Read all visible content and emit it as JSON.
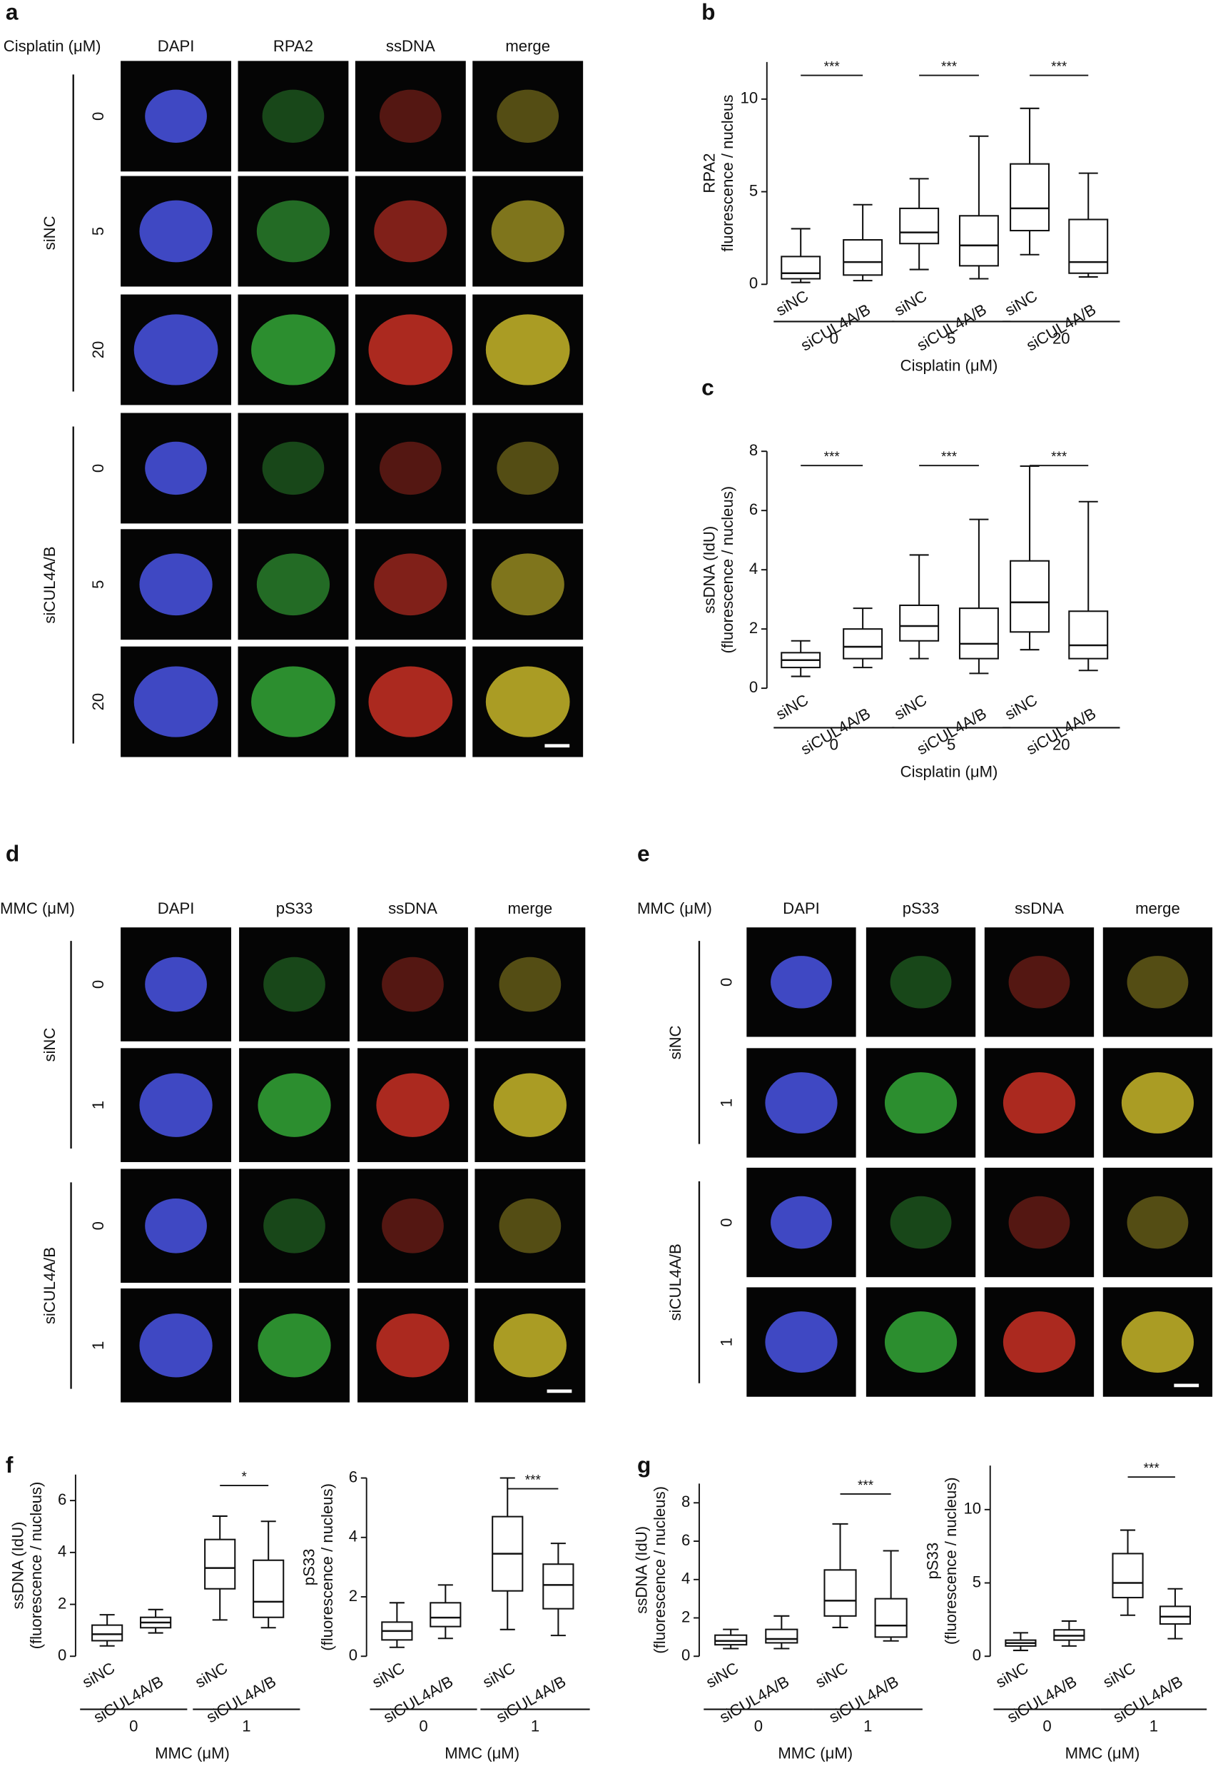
{
  "figure": {
    "letters": [
      "a",
      "b",
      "c",
      "d",
      "e",
      "f",
      "g"
    ],
    "panels": {
      "a": {
        "treatment": "Cisplatin (μM)",
        "channels": [
          "DAPI",
          "RPA2",
          "ssDNA",
          "merge"
        ],
        "groups": [
          {
            "label": "siNC",
            "doses": [
              "0",
              "5",
              "20"
            ]
          },
          {
            "label": "siCUL4A/B",
            "doses": [
              "0",
              "5",
              "20"
            ]
          }
        ]
      },
      "d": {
        "treatment": "MMC (μM)",
        "channels": [
          "DAPI",
          "pS33",
          "ssDNA",
          "merge"
        ],
        "groups": [
          {
            "label": "siNC",
            "doses": [
              "0",
              "1"
            ]
          },
          {
            "label": "siCUL4A/B",
            "doses": [
              "0",
              "1"
            ]
          }
        ]
      },
      "e": {
        "treatment": "MMC (μM)",
        "channels": [
          "DAPI",
          "pS33",
          "ssDNA",
          "merge"
        ],
        "groups": [
          {
            "label": "siNC",
            "doses": [
              "0",
              "1"
            ]
          },
          {
            "label": "siCUL4A/B",
            "doses": [
              "0",
              "1"
            ]
          }
        ]
      }
    }
  },
  "chart_data": [
    {
      "type": "box",
      "ylabel": [
        "RPA2",
        "fluorescence / nucleus"
      ],
      "xlabel": "Cisplatin (μM)",
      "categories": [
        "siNC",
        "siCUL4A/B",
        "siNC",
        "siCUL4A/B",
        "siNC",
        "siCUL4A/B"
      ],
      "groups": [
        "0",
        "5",
        "20"
      ],
      "significance": [
        "***",
        "***",
        "***"
      ],
      "ylim": [
        0,
        12
      ],
      "yticks": [
        0,
        5,
        10
      ],
      "boxes": [
        {
          "whislo": 0.1,
          "q1": 0.3,
          "med": 0.6,
          "q3": 1.5,
          "whishi": 3.0
        },
        {
          "whislo": 0.2,
          "q1": 0.5,
          "med": 1.2,
          "q3": 2.4,
          "whishi": 4.3
        },
        {
          "whislo": 0.8,
          "q1": 2.2,
          "med": 2.8,
          "q3": 4.1,
          "whishi": 5.7
        },
        {
          "whislo": 0.3,
          "q1": 1.0,
          "med": 2.1,
          "q3": 3.7,
          "whishi": 8.0
        },
        {
          "whislo": 1.6,
          "q1": 2.9,
          "med": 4.1,
          "q3": 6.5,
          "whishi": 9.5
        },
        {
          "whislo": 0.4,
          "q1": 0.6,
          "med": 1.2,
          "q3": 3.5,
          "whishi": 6.0
        }
      ]
    },
    {
      "type": "box",
      "ylabel": [
        "ssDNA (IdU)",
        "(fluorescence / nucleus)"
      ],
      "xlabel": "Cisplatin (μM)",
      "categories": [
        "siNC",
        "siCUL4A/B",
        "siNC",
        "siCUL4A/B",
        "siNC",
        "siCUL4A/B"
      ],
      "groups": [
        "0",
        "5",
        "20"
      ],
      "significance": [
        "***",
        "***",
        "***"
      ],
      "ylim": [
        0,
        8
      ],
      "yticks": [
        0,
        2,
        4,
        6,
        8
      ],
      "boxes": [
        {
          "whislo": 0.4,
          "q1": 0.7,
          "med": 0.95,
          "q3": 1.2,
          "whishi": 1.6
        },
        {
          "whislo": 0.7,
          "q1": 1.0,
          "med": 1.4,
          "q3": 2.0,
          "whishi": 2.7
        },
        {
          "whislo": 1.0,
          "q1": 1.6,
          "med": 2.1,
          "q3": 2.8,
          "whishi": 4.5
        },
        {
          "whislo": 0.5,
          "q1": 1.0,
          "med": 1.5,
          "q3": 2.7,
          "whishi": 5.7
        },
        {
          "whislo": 1.3,
          "q1": 1.9,
          "med": 2.9,
          "q3": 4.3,
          "whishi": 7.5
        },
        {
          "whislo": 0.6,
          "q1": 1.0,
          "med": 1.45,
          "q3": 2.6,
          "whishi": 6.3
        }
      ]
    },
    {
      "type": "box",
      "ylabel": [
        "ssDNA (IdU)",
        "(fluorescence / nucleus)"
      ],
      "xlabel": "MMC (μM)",
      "categories": [
        "siNC",
        "siCUL4A/B",
        "siNC",
        "siCUL4A/B"
      ],
      "groups": [
        "0",
        "1"
      ],
      "significance": [
        null,
        "*"
      ],
      "ylim": [
        0,
        7
      ],
      "yticks": [
        0,
        2,
        4,
        6
      ],
      "boxes": [
        {
          "whislo": 0.4,
          "q1": 0.6,
          "med": 0.85,
          "q3": 1.2,
          "whishi": 1.6
        },
        {
          "whislo": 0.9,
          "q1": 1.1,
          "med": 1.3,
          "q3": 1.5,
          "whishi": 1.8
        },
        {
          "whislo": 1.4,
          "q1": 2.6,
          "med": 3.4,
          "q3": 4.5,
          "whishi": 5.4
        },
        {
          "whislo": 1.1,
          "q1": 1.5,
          "med": 2.1,
          "q3": 3.7,
          "whishi": 5.2
        }
      ]
    },
    {
      "type": "box",
      "ylabel": [
        "pS33",
        "(fluorescence / nucleus)"
      ],
      "xlabel": "MMC (μM)",
      "categories": [
        "siNC",
        "siCUL4A/B",
        "siNC",
        "siCUL4A/B"
      ],
      "groups": [
        "0",
        "1"
      ],
      "significance": [
        null,
        "***"
      ],
      "ylim": [
        0,
        6
      ],
      "yticks": [
        0,
        2,
        4,
        6
      ],
      "boxes": [
        {
          "whislo": 0.3,
          "q1": 0.55,
          "med": 0.85,
          "q3": 1.15,
          "whishi": 1.8
        },
        {
          "whislo": 0.6,
          "q1": 1.0,
          "med": 1.3,
          "q3": 1.8,
          "whishi": 2.4
        },
        {
          "whislo": 0.9,
          "q1": 2.2,
          "med": 3.45,
          "q3": 4.7,
          "whishi": 6.0
        },
        {
          "whislo": 0.7,
          "q1": 1.6,
          "med": 2.4,
          "q3": 3.1,
          "whishi": 3.8
        }
      ]
    },
    {
      "type": "box",
      "ylabel": [
        "ssDNA (IdU)",
        "(fluorescence / nucleus)"
      ],
      "xlabel": "MMC (μM)",
      "categories": [
        "siNC",
        "siCUL4A/B",
        "siNC",
        "siCUL4A/B"
      ],
      "groups": [
        "0",
        "1"
      ],
      "significance": [
        null,
        "***"
      ],
      "ylim": [
        0,
        9
      ],
      "yticks": [
        0,
        2,
        4,
        6,
        8
      ],
      "boxes": [
        {
          "whislo": 0.4,
          "q1": 0.6,
          "med": 0.8,
          "q3": 1.1,
          "whishi": 1.4
        },
        {
          "whislo": 0.4,
          "q1": 0.7,
          "med": 0.9,
          "q3": 1.4,
          "whishi": 2.1
        },
        {
          "whislo": 1.5,
          "q1": 2.1,
          "med": 2.9,
          "q3": 4.5,
          "whishi": 6.9
        },
        {
          "whislo": 0.8,
          "q1": 1.0,
          "med": 1.6,
          "q3": 3.0,
          "whishi": 5.5
        }
      ]
    },
    {
      "type": "box",
      "ylabel": [
        "pS33",
        "(fluorescence / nucleus)"
      ],
      "xlabel": "MMC (μM)",
      "categories": [
        "siNC",
        "siCUL4A/B",
        "siNC",
        "siCUL4A/B"
      ],
      "groups": [
        "0",
        "1"
      ],
      "significance": [
        null,
        "***"
      ],
      "ylim": [
        0,
        13
      ],
      "yticks": [
        0,
        5,
        10
      ],
      "boxes": [
        {
          "whislo": 0.4,
          "q1": 0.7,
          "med": 0.9,
          "q3": 1.1,
          "whishi": 1.6
        },
        {
          "whislo": 0.7,
          "q1": 1.1,
          "med": 1.4,
          "q3": 1.8,
          "whishi": 2.4
        },
        {
          "whislo": 2.8,
          "q1": 4.0,
          "med": 5.0,
          "q3": 7.0,
          "whishi": 8.6
        },
        {
          "whislo": 1.2,
          "q1": 2.2,
          "med": 2.7,
          "q3": 3.4,
          "whishi": 4.6
        }
      ]
    }
  ]
}
